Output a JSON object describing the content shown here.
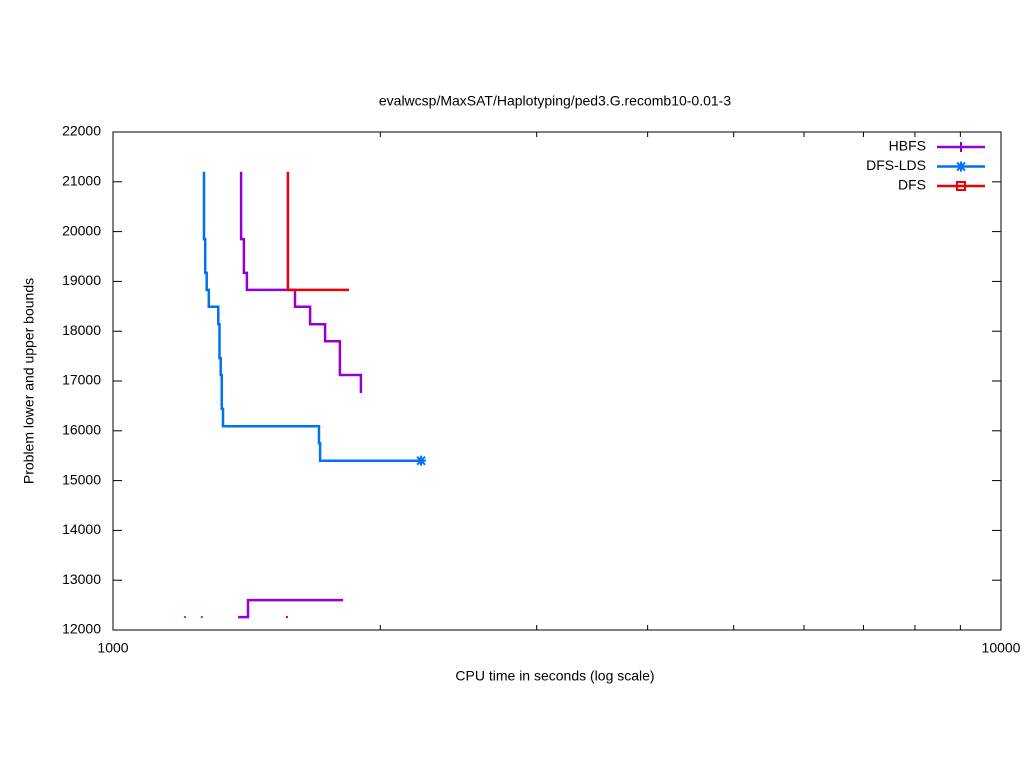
{
  "chart_data": {
    "type": "line",
    "title": "evalwcsp/MaxSAT/Haplotyping/ped3.G.recomb10-0.01-3",
    "x_label": "CPU time in seconds (log scale)",
    "y_label": "Problem lower and upper bounds",
    "xscale": "log",
    "xlim": [
      1000,
      10000
    ],
    "xticks": [
      1000,
      10000
    ],
    "xminorticks": [
      2000,
      3000,
      4000,
      5000,
      6000,
      7000,
      8000,
      9000
    ],
    "ylim": [
      12000,
      22000
    ],
    "yticks": [
      12000,
      13000,
      14000,
      15000,
      16000,
      17000,
      18000,
      19000,
      20000,
      21000,
      22000
    ],
    "legend": "top-right",
    "series": [
      {
        "name": "HBFS",
        "color": "#9400d3",
        "marker": "plus",
        "upper": {
          "x": [
            1394,
            1394,
            1404,
            1404,
            1415,
            1415,
            1603,
            1603,
            1667,
            1667,
            1733,
            1733,
            1801,
            1801,
            1902,
            1902
          ],
          "y": [
            21200,
            19850,
            19850,
            19170,
            19170,
            18830,
            18830,
            18490,
            18490,
            18140,
            18140,
            17800,
            17800,
            17120,
            17120,
            16760
          ]
        },
        "lower": {
          "x": [
            1383,
            1419,
            1419,
            1816
          ],
          "y": [
            12260,
            12260,
            12600,
            12600
          ]
        }
      },
      {
        "name": "DFS-LDS",
        "color": "#0072ee",
        "marker": "star",
        "end_marker": true,
        "upper": {
          "x": [
            1266,
            1266,
            1270,
            1270,
            1275,
            1275,
            1282,
            1282,
            1314,
            1314,
            1318,
            1318,
            1322,
            1322,
            1326,
            1326,
            1330,
            1330,
            1706,
            1706,
            1711,
            1711,
            2223
          ],
          "y": [
            21200,
            19850,
            19850,
            19170,
            19170,
            18830,
            18830,
            18490,
            18490,
            18140,
            18140,
            17460,
            17460,
            17120,
            17120,
            16440,
            16440,
            16090,
            16090,
            15750,
            15750,
            15400,
            15400
          ]
        },
        "lower": {
          "x": [
            1259
          ],
          "y": [
            12260
          ]
        }
      },
      {
        "name": "DFS",
        "color": "#ee0000",
        "marker": "square",
        "upper": {
          "x": [
            1574,
            1574,
            1844
          ],
          "y": [
            21200,
            18830,
            18830
          ]
        },
        "lower": {
          "x": [
            1570
          ],
          "y": [
            12260
          ]
        }
      },
      {
        "color": "#00a000",
        "lower": {
          "x": [
            1205
          ],
          "y": [
            12260
          ]
        }
      }
    ]
  }
}
